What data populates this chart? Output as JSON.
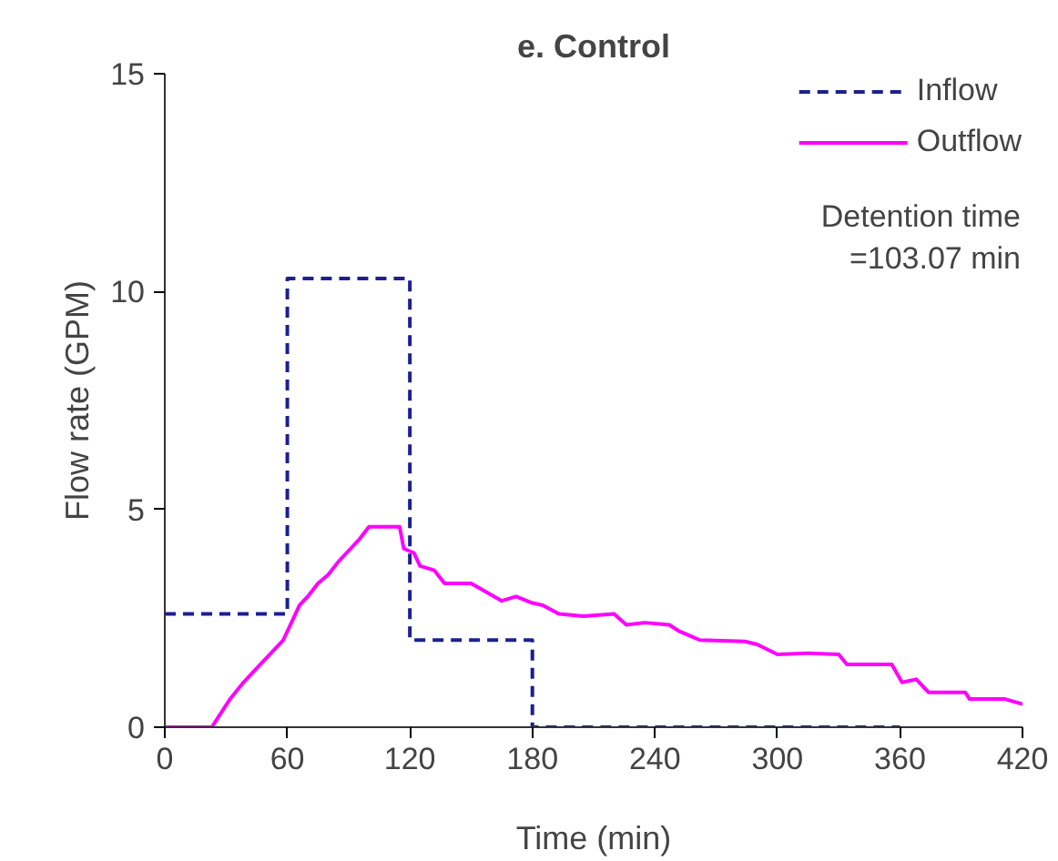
{
  "chart_data": {
    "type": "line",
    "title": "e. Control",
    "xlabel": "Time (min)",
    "ylabel": "Flow rate (GPM)",
    "xlim": [
      0,
      420
    ],
    "xticks": [
      0,
      60,
      120,
      180,
      240,
      300,
      360,
      420
    ],
    "ylim": [
      0,
      15
    ],
    "yticks": [
      0,
      5,
      10,
      15
    ],
    "grid": false,
    "legend": "top right",
    "marker": "none",
    "annotations": [
      "Detention time\n=103.07 min"
    ],
    "series": [
      {
        "name": "Inflow",
        "color": "#1c2090",
        "line_style": "dashed",
        "x": [
          0,
          60,
          60,
          120,
          120,
          180,
          180,
          360
        ],
        "values": [
          2.6,
          2.6,
          10.3,
          10.3,
          2.0,
          2.0,
          0,
          0
        ]
      },
      {
        "name": "Outflow",
        "color": "#ff00ff",
        "line_style": "solid",
        "x": [
          0,
          23,
          32,
          38,
          46,
          52,
          58,
          62,
          66,
          70,
          75,
          80,
          85,
          91,
          95,
          100,
          108,
          115,
          117,
          122,
          125,
          132,
          137,
          150,
          165,
          172,
          180,
          185,
          193,
          205,
          220,
          226,
          235,
          247,
          252,
          262,
          284,
          290,
          300,
          315,
          330,
          334,
          356,
          361,
          368,
          374,
          392,
          394,
          411,
          420
        ],
        "values": [
          0,
          0,
          0.65,
          1.0,
          1.4,
          1.7,
          2.0,
          2.4,
          2.8,
          3.0,
          3.3,
          3.5,
          3.8,
          4.1,
          4.3,
          4.6,
          4.6,
          4.6,
          4.1,
          4.0,
          3.7,
          3.6,
          3.3,
          3.3,
          2.9,
          3.0,
          2.85,
          2.8,
          2.6,
          2.55,
          2.6,
          2.35,
          2.4,
          2.35,
          2.2,
          2.0,
          1.97,
          1.9,
          1.67,
          1.7,
          1.67,
          1.44,
          1.44,
          1.03,
          1.1,
          0.8,
          0.8,
          0.65,
          0.65,
          0.53
        ]
      }
    ]
  }
}
